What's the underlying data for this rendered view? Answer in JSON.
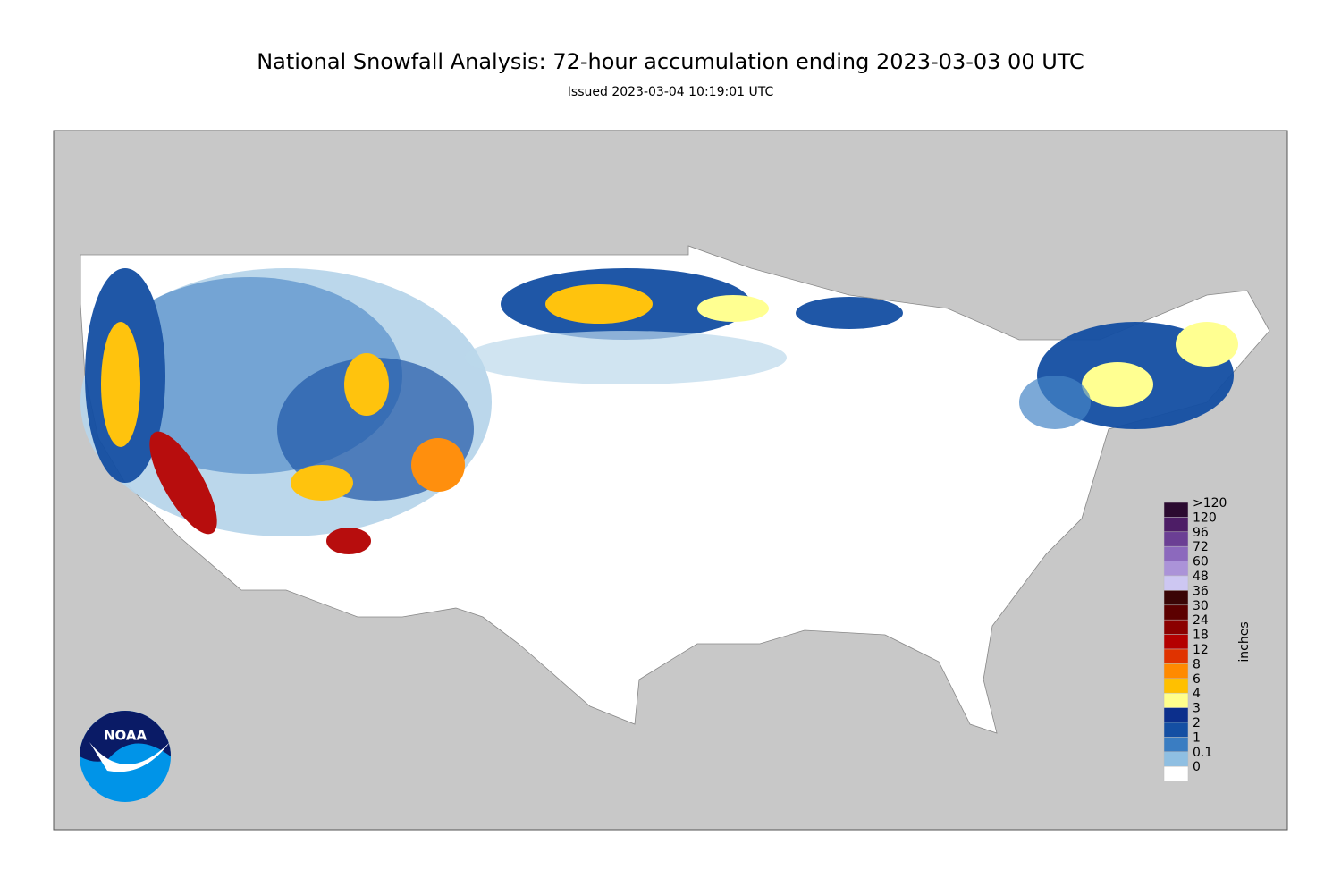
{
  "header": {
    "title": "National Snowfall Analysis: 72-hour accumulation ending 2023-03-03 00 UTC",
    "subtitle": "Issued 2023-03-04 10:19:01 UTC"
  },
  "legend": {
    "units": "inches",
    "items": [
      {
        "label": ">120",
        "color": "#2b0a30"
      },
      {
        "label": "120",
        "color": "#4d1d66"
      },
      {
        "label": "96",
        "color": "#6b3f94"
      },
      {
        "label": "72",
        "color": "#8c69bd"
      },
      {
        "label": "60",
        "color": "#ab93d8"
      },
      {
        "label": "48",
        "color": "#cdc7f2"
      },
      {
        "label": "36",
        "color": "#3a0505"
      },
      {
        "label": "30",
        "color": "#5c0000"
      },
      {
        "label": "24",
        "color": "#8b0000"
      },
      {
        "label": "18",
        "color": "#b40000"
      },
      {
        "label": "12",
        "color": "#e03300"
      },
      {
        "label": "8",
        "color": "#ff8a00"
      },
      {
        "label": "6",
        "color": "#ffc000"
      },
      {
        "label": "4",
        "color": "#ffff8c"
      },
      {
        "label": "3",
        "color": "#0c2f8c"
      },
      {
        "label": "2",
        "color": "#144fa3"
      },
      {
        "label": "1",
        "color": "#3a7dc2"
      },
      {
        "label": "0.1",
        "color": "#8fbfe2"
      },
      {
        "label": "0",
        "color": "#ffffff"
      }
    ]
  },
  "logo": {
    "text": "NOAA"
  }
}
